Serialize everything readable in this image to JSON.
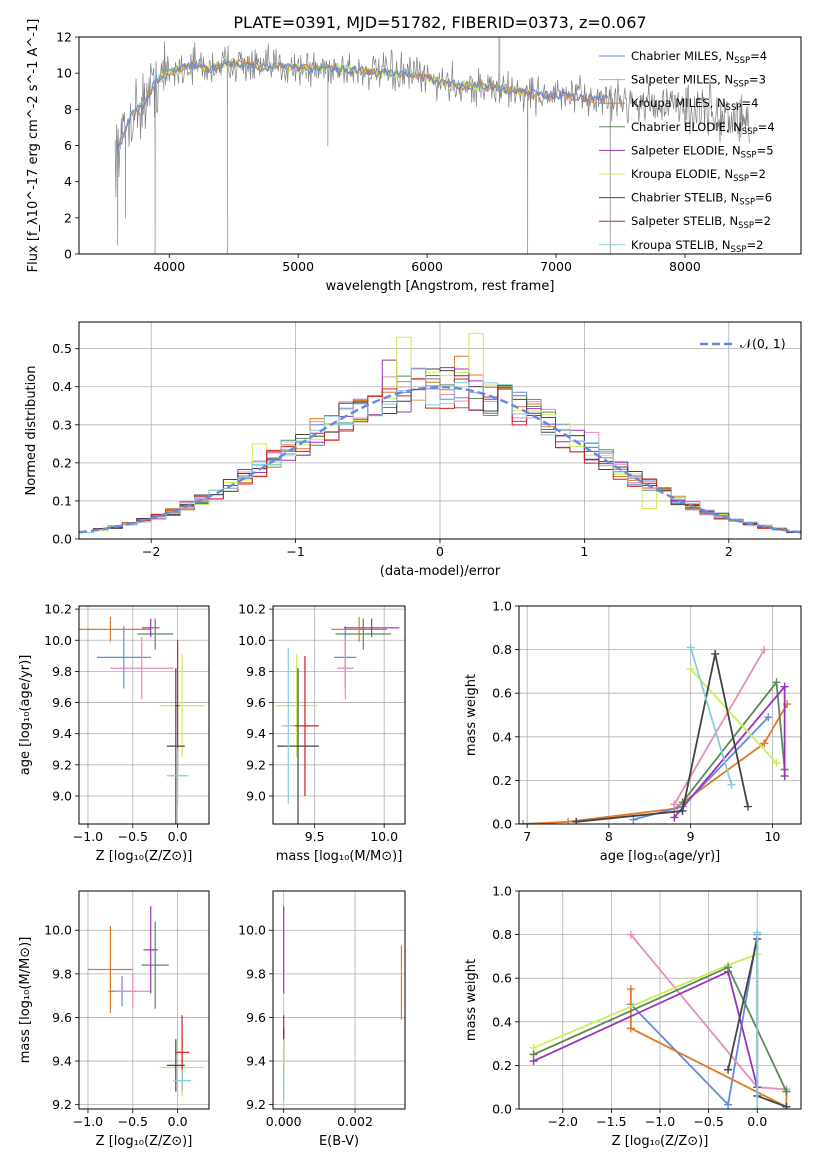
{
  "figure_title": "PLATE=0391, MJD=51782, FIBERID=0373, z=0.067",
  "palette": {
    "Chabrier MILES": "#6688dd",
    "Salpeter MILES": "#e88bbd",
    "Kroupa MILES": "#e07a28",
    "Chabrier ELODIE": "#5a8a5a",
    "Salpeter ELODIE": "#9933bb",
    "Kroupa ELODIE": "#ccee55",
    "Chabrier STELIB": "#444444",
    "Salpeter STELIB": "#cc2222",
    "Kroupa STELIB": "#88ccdd",
    "data": "#808080",
    "normal": "#6688dd"
  },
  "chart_data": [
    {
      "id": "spectrum",
      "type": "line",
      "xlabel": "wavelength [Angstrom, rest frame]",
      "ylabel": "Flux [f_λ10^-17 erg cm^-2 s^-1 A^-1]",
      "xlim": [
        3300,
        8900
      ],
      "ylim": [
        0,
        12
      ],
      "xticks": [
        4000,
        5000,
        6000,
        7000,
        8000
      ],
      "yticks": [
        0,
        2,
        4,
        6,
        8,
        10,
        12
      ],
      "grid": false,
      "legend_position": "right",
      "legend": [
        {
          "model": "Chabrier MILES",
          "label": "Chabrier MILES, N",
          "sub": "SSP",
          "suffix": "=4"
        },
        {
          "model": "Salpeter MILES",
          "label": "Salpeter MILES, N",
          "sub": "SSP",
          "suffix": "=3"
        },
        {
          "model": "Kroupa MILES",
          "label": "Kroupa MILES, N",
          "sub": "SSP",
          "suffix": "=4"
        },
        {
          "model": "Chabrier ELODIE",
          "label": "Chabrier ELODIE, N",
          "sub": "SSP",
          "suffix": "=4"
        },
        {
          "model": "Salpeter ELODIE",
          "label": "Salpeter ELODIE, N",
          "sub": "SSP",
          "suffix": "=5"
        },
        {
          "model": "Kroupa ELODIE",
          "label": "Kroupa ELODIE, N",
          "sub": "SSP",
          "suffix": "=2"
        },
        {
          "model": "Chabrier STELIB",
          "label": "Chabrier STELIB, N",
          "sub": "SSP",
          "suffix": "=6"
        },
        {
          "model": "Salpeter STELIB",
          "label": "Salpeter STELIB, N",
          "sub": "SSP",
          "suffix": "=2"
        },
        {
          "model": "Kroupa STELIB",
          "label": "Kroupa STELIB, N",
          "sub": "SSP",
          "suffix": "=2"
        }
      ],
      "data_continuum": {
        "x": [
          3580,
          3650,
          3700,
          3800,
          3900,
          4000,
          4100,
          4200,
          4300,
          4400,
          4500,
          4700,
          4900,
          5100,
          5300,
          5500,
          5700,
          5900,
          6100,
          6300,
          6500,
          6700,
          6900,
          7100,
          7300,
          7500,
          7700,
          7900,
          8100,
          8300,
          8500
        ],
        "y": [
          5.6,
          6.6,
          7.6,
          8.3,
          9.6,
          10.0,
          10.3,
          10.5,
          10.2,
          10.5,
          10.6,
          10.3,
          10.4,
          10.2,
          10.3,
          10.1,
          10.0,
          9.9,
          9.5,
          9.3,
          9.2,
          9.0,
          8.8,
          8.7,
          8.6,
          8.5,
          8.3,
          8.2,
          8.0,
          7.6,
          7.2
        ]
      },
      "data_dips": [
        [
          3600,
          0.5
        ],
        [
          3660,
          2.0
        ],
        [
          3890,
          0.0
        ],
        [
          4450,
          0.0
        ],
        [
          5230,
          6.0
        ],
        [
          6780,
          0.0
        ],
        [
          7420,
          0.0
        ]
      ],
      "data_spike": [
        6560,
        12.0
      ],
      "model_extent": {
        "Kroupa STELIB": [
          3600,
          6800
        ],
        "Kroupa ELODIE": [
          3900,
          6800
        ],
        "Kroupa MILES": [
          3600,
          7400
        ],
        "Chabrier MILES": [
          3600,
          7400
        ]
      }
    },
    {
      "id": "residuals",
      "type": "histogram",
      "xlabel": "(data-model)/error",
      "ylabel": "Normed distribution",
      "xlim": [
        -2.5,
        2.5
      ],
      "ylim": [
        0,
        0.57
      ],
      "xticks": [
        -2,
        -1,
        0,
        1,
        2
      ],
      "yticks": [
        0.0,
        0.1,
        0.2,
        0.3,
        0.4,
        0.5
      ],
      "grid": true,
      "legend_position": "top-right",
      "normal_label": "𝒩(0, 1)",
      "bin_width": 0.1,
      "bin_start": -2.5,
      "outline_series": {
        "Kroupa ELODIE": {
          "0.3": 0.54,
          "-0.2": 0.53,
          "-1.2": 0.25,
          "1.5": 0.08
        },
        "Salpeter ELODIE": {
          "-0.3": 0.47,
          "0.1": 0.45
        },
        "Kroupa MILES": {
          "0.2": 0.48,
          "-0.4": 0.4
        },
        "Salpeter MILES": {
          "1.1": 0.28,
          "-0.9": 0.22
        }
      }
    },
    {
      "id": "age-vs-Z",
      "type": "scatter",
      "errorbars": true,
      "xlabel": "Z [log₁₀(Z/Z⊙)]",
      "ylabel": "age [log₁₀(age/yr)]",
      "xlim": [
        -1.1,
        0.35
      ],
      "ylim": [
        8.82,
        10.22
      ],
      "xticks": [
        -1.0,
        -0.5,
        0.0
      ],
      "yticks": [
        9.0,
        9.2,
        9.4,
        9.6,
        9.8,
        10.0,
        10.2
      ],
      "grid": true,
      "points": [
        {
          "model": "Chabrier MILES",
          "x": -0.6,
          "xerr": 0.3,
          "y": 9.89,
          "yerr": 0.2
        },
        {
          "model": "Salpeter MILES",
          "x": -0.4,
          "xerr": 0.35,
          "y": 9.82,
          "yerr": 0.2
        },
        {
          "model": "Kroupa MILES",
          "x": -0.75,
          "xerr": 0.45,
          "y": 10.07,
          "yerr": 0.08
        },
        {
          "model": "Chabrier ELODIE",
          "x": -0.25,
          "xerr": 0.2,
          "y": 10.04,
          "yerr": 0.1
        },
        {
          "model": "Salpeter ELODIE",
          "x": -0.3,
          "xerr": 0.1,
          "y": 10.08,
          "yerr": 0.06
        },
        {
          "model": "Kroupa ELODIE",
          "x": 0.05,
          "xerr": 0.25,
          "y": 9.58,
          "yerr": 0.33
        },
        {
          "model": "Chabrier STELIB",
          "x": -0.02,
          "xerr": 0.1,
          "y": 9.32,
          "yerr": 0.5
        },
        {
          "model": "Salpeter STELIB",
          "x": 0.0,
          "xerr": 0.02,
          "y": 9.58,
          "yerr": 0.42
        },
        {
          "model": "Kroupa STELIB",
          "x": 0.0,
          "xerr": 0.12,
          "y": 9.13,
          "yerr": 0.18
        }
      ]
    },
    {
      "id": "age-vs-mass",
      "type": "scatter",
      "errorbars": true,
      "xlabel": "mass [log₁₀(M/M⊙)]",
      "ylabel": "",
      "xlim": [
        9.2,
        10.15
      ],
      "ylim": [
        8.82,
        10.22
      ],
      "xticks": [
        9.5,
        10.0
      ],
      "yticks": [
        9.0,
        9.2,
        9.4,
        9.6,
        9.8,
        10.0,
        10.2
      ],
      "grid": true,
      "points": [
        {
          "model": "Chabrier MILES",
          "x": 9.72,
          "xerr": 0.08,
          "y": 9.89,
          "yerr": 0.2
        },
        {
          "model": "Salpeter MILES",
          "x": 9.72,
          "xerr": 0.06,
          "y": 9.82,
          "yerr": 0.2
        },
        {
          "model": "Kroupa MILES",
          "x": 9.82,
          "xerr": 0.2,
          "y": 10.07,
          "yerr": 0.08
        },
        {
          "model": "Chabrier ELODIE",
          "x": 9.85,
          "xerr": 0.2,
          "y": 10.04,
          "yerr": 0.1
        },
        {
          "model": "Salpeter ELODIE",
          "x": 9.91,
          "xerr": 0.2,
          "y": 10.08,
          "yerr": 0.06
        },
        {
          "model": "Kroupa ELODIE",
          "x": 9.37,
          "xerr": 0.15,
          "y": 9.58,
          "yerr": 0.33
        },
        {
          "model": "Chabrier STELIB",
          "x": 9.38,
          "xerr": 0.15,
          "y": 9.32,
          "yerr": 0.5
        },
        {
          "model": "Salpeter STELIB",
          "x": 9.43,
          "xerr": 0.1,
          "y": 9.45,
          "yerr": 0.45
        },
        {
          "model": "Kroupa STELIB",
          "x": 9.31,
          "xerr": 0.05,
          "y": 9.45,
          "yerr": 0.5
        }
      ]
    },
    {
      "id": "mass-weight-vs-age",
      "type": "line",
      "markers": "+",
      "xlabel": "age [log₁₀(age/yr)]",
      "ylabel": "mass weight",
      "xlim": [
        6.9,
        10.35
      ],
      "ylim": [
        0,
        1
      ],
      "xticks": [
        7,
        8,
        9,
        10
      ],
      "yticks": [
        0.0,
        0.2,
        0.4,
        0.6,
        0.8,
        1.0
      ],
      "grid": true,
      "series": [
        {
          "model": "Kroupa MILES",
          "x": [
            6.95,
            7.5,
            8.8,
            9.9,
            10.18
          ],
          "y": [
            0.0,
            0.01,
            0.07,
            0.37,
            0.55
          ]
        },
        {
          "model": "Chabrier MILES",
          "x": [
            8.3,
            8.9,
            9.95
          ],
          "y": [
            0.02,
            0.08,
            0.49
          ]
        },
        {
          "model": "Salpeter MILES",
          "x": [
            8.8,
            9.9
          ],
          "y": [
            0.09,
            0.8
          ]
        },
        {
          "model": "Chabrier ELODIE",
          "x": [
            8.9,
            10.05,
            10.15
          ],
          "y": [
            0.1,
            0.65,
            0.25
          ]
        },
        {
          "model": "Salpeter ELODIE",
          "x": [
            8.8,
            10.15,
            10.15
          ],
          "y": [
            0.03,
            0.63,
            0.22
          ]
        },
        {
          "model": "Kroupa ELODIE",
          "x": [
            9.0,
            10.05
          ],
          "y": [
            0.71,
            0.28
          ]
        },
        {
          "model": "Chabrier STELIB",
          "x": [
            7.6,
            8.9,
            9.3,
            9.7
          ],
          "y": [
            0.01,
            0.06,
            0.78,
            0.08
          ]
        },
        {
          "model": "Kroupa STELIB",
          "x": [
            9.0,
            9.5
          ],
          "y": [
            0.81,
            0.18
          ]
        }
      ]
    },
    {
      "id": "mass-vs-Z",
      "type": "scatter",
      "errorbars": true,
      "xlabel": "Z [log₁₀(Z/Z⊙)]",
      "ylabel": "mass [log₁₀(M/M⊙)]",
      "xlim": [
        -1.1,
        0.35
      ],
      "ylim": [
        9.18,
        10.18
      ],
      "xticks": [
        -1.0,
        -0.5,
        0.0
      ],
      "yticks": [
        9.2,
        9.4,
        9.6,
        9.8,
        10.0
      ],
      "grid": true,
      "points": [
        {
          "model": "Chabrier MILES",
          "x": -0.62,
          "xerr": 0.15,
          "y": 9.72,
          "yerr": 0.07
        },
        {
          "model": "Salpeter MILES",
          "x": -0.5,
          "xerr": 0.2,
          "y": 9.72,
          "yerr": 0.08
        },
        {
          "model": "Kroupa MILES",
          "x": -0.75,
          "xerr": 0.25,
          "y": 9.82,
          "yerr": 0.2
        },
        {
          "model": "Chabrier ELODIE",
          "x": -0.25,
          "xerr": 0.15,
          "y": 9.84,
          "yerr": 0.2
        },
        {
          "model": "Salpeter ELODIE",
          "x": -0.3,
          "xerr": 0.08,
          "y": 9.91,
          "yerr": 0.2
        },
        {
          "model": "Kroupa ELODIE",
          "x": 0.05,
          "xerr": 0.25,
          "y": 9.37,
          "yerr": 0.13
        },
        {
          "model": "Chabrier STELIB",
          "x": -0.02,
          "xerr": 0.1,
          "y": 9.38,
          "yerr": 0.12
        },
        {
          "model": "Salpeter STELIB",
          "x": 0.05,
          "xerr": 0.08,
          "y": 9.44,
          "yerr": 0.17
        },
        {
          "model": "Kroupa STELIB",
          "x": 0.05,
          "xerr": 0.1,
          "y": 9.31,
          "yerr": 0.05
        }
      ]
    },
    {
      "id": "mass-vs-ebv",
      "type": "scatter",
      "errorbars": true,
      "xlabel": "E(B-V)",
      "ylabel": "",
      "xlim": [
        -0.0003,
        0.0034
      ],
      "ylim": [
        9.18,
        10.18
      ],
      "xticks": [
        0.0,
        0.002
      ],
      "yticks": [
        9.2,
        9.4,
        9.6,
        9.8,
        10.0
      ],
      "grid": true,
      "points": [
        {
          "model": "Salpeter ELODIE",
          "x": 0.0,
          "xerr": 0,
          "y": 9.91,
          "yerr": 0.2
        },
        {
          "model": "Salpeter STELIB",
          "x": 0.0,
          "xerr": 0,
          "y": 9.55,
          "yerr": 0.06
        },
        {
          "model": "Chabrier STELIB",
          "x": 0.0,
          "xerr": 0,
          "y": 9.45,
          "yerr": 0.1
        },
        {
          "model": "Kroupa ELODIE",
          "x": 0.0,
          "xerr": 0,
          "y": 9.35,
          "yerr": 0.15
        },
        {
          "model": "Kroupa STELIB",
          "x": 0.0,
          "xerr": 0,
          "y": 9.3,
          "yerr": 0.08
        },
        {
          "model": "Kroupa MILES",
          "x": 0.0033,
          "xerr": 0,
          "y": 9.76,
          "yerr": 0.17
        }
      ]
    },
    {
      "id": "mass-weight-vs-Z",
      "type": "line",
      "markers": "+",
      "xlabel": "Z [log₁₀(Z/Z⊙)]",
      "ylabel": "mass weight",
      "xlim": [
        -2.45,
        0.45
      ],
      "ylim": [
        0,
        1
      ],
      "xticks": [
        -2.0,
        -1.5,
        -1.0,
        -0.5,
        0.0
      ],
      "yticks": [
        0.0,
        0.2,
        0.4,
        0.6,
        0.8,
        1.0
      ],
      "grid": true,
      "series": [
        {
          "model": "Chabrier MILES",
          "x": [
            -1.3,
            -0.3,
            0.0
          ],
          "y": [
            0.48,
            0.02,
            0.8
          ]
        },
        {
          "model": "Kroupa MILES",
          "x": [
            -1.3,
            -1.3,
            0.3,
            0.3
          ],
          "y": [
            0.55,
            0.37,
            0.01,
            0.08
          ]
        },
        {
          "model": "Salpeter MILES",
          "x": [
            -1.3,
            0.0,
            0.3
          ],
          "y": [
            0.8,
            0.1,
            0.09
          ]
        },
        {
          "model": "Kroupa ELODIE",
          "x": [
            -2.3,
            -0.3,
            0.0
          ],
          "y": [
            0.28,
            0.66,
            0.71
          ]
        },
        {
          "model": "Salpeter ELODIE",
          "x": [
            -2.3,
            -0.3,
            0.0
          ],
          "y": [
            0.22,
            0.63,
            0.1
          ]
        },
        {
          "model": "Chabrier ELODIE",
          "x": [
            -2.3,
            -0.3,
            0.3
          ],
          "y": [
            0.25,
            0.65,
            0.08
          ]
        },
        {
          "model": "Chabrier STELIB",
          "x": [
            -0.3,
            0.0,
            0.0,
            0.3
          ],
          "y": [
            0.18,
            0.78,
            0.06,
            0.01
          ]
        },
        {
          "model": "Kroupa STELIB",
          "x": [
            0.0,
            0.0
          ],
          "y": [
            0.81,
            0.0
          ]
        }
      ]
    }
  ]
}
